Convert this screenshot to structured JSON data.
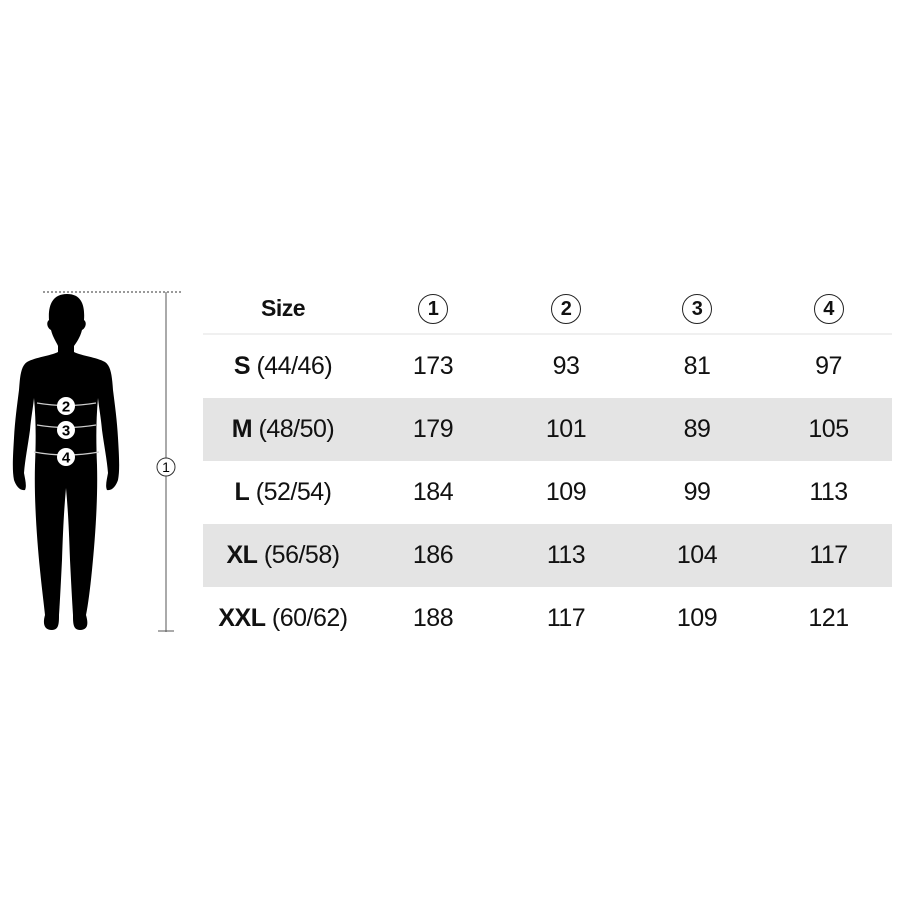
{
  "figure": {
    "markers": [
      "1",
      "2",
      "3",
      "4"
    ]
  },
  "table": {
    "header": {
      "size": "Size",
      "cols": [
        "1",
        "2",
        "3",
        "4"
      ]
    },
    "rows": [
      {
        "size_letter": "S",
        "size_eu": "(44/46)",
        "values": [
          "173",
          "93",
          "81",
          "97"
        ]
      },
      {
        "size_letter": "M",
        "size_eu": "(48/50)",
        "values": [
          "179",
          "101",
          "89",
          "105"
        ]
      },
      {
        "size_letter": "L",
        "size_eu": "(52/54)",
        "values": [
          "184",
          "109",
          "99",
          "113"
        ]
      },
      {
        "size_letter": "XL",
        "size_eu": "(56/58)",
        "values": [
          "186",
          "113",
          "104",
          "117"
        ]
      },
      {
        "size_letter": "XXL",
        "size_eu": "(60/62)",
        "values": [
          "188",
          "117",
          "109",
          "121"
        ]
      }
    ],
    "stripe_color": "#e4e4e4"
  }
}
